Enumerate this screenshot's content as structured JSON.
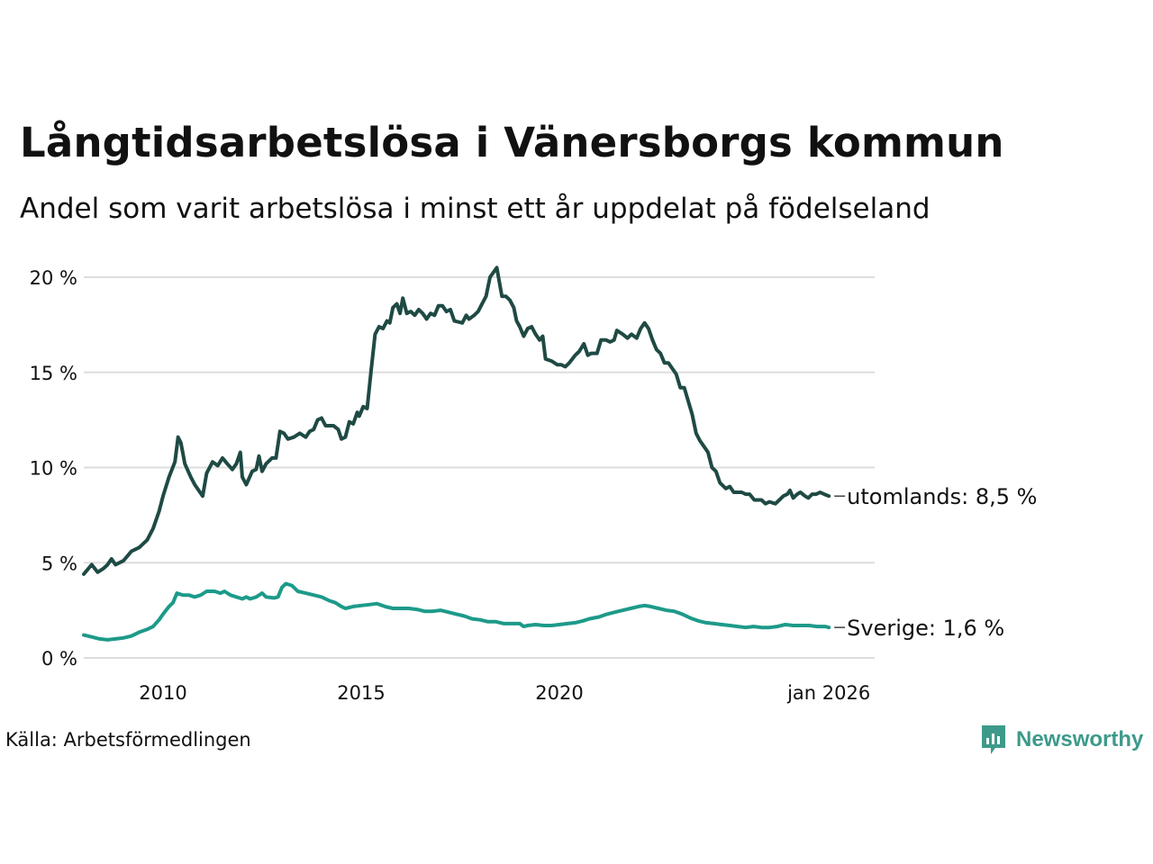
{
  "title": "Långtidsarbetslösa i Vänersborgs kommun",
  "subtitle": "Andel som varit arbetslösa i minst ett år uppdelat på födelseland",
  "source": "Källa: Arbetsförmedlingen",
  "logo_text": "Newsworthy",
  "colors": {
    "utomlands": "#1f4a44",
    "sverige": "#1d9a8a",
    "grid": "#dddddd",
    "logo": "#3d9a8a"
  },
  "chart_data": {
    "type": "line",
    "title": "Långtidsarbetslösa i Vänersborgs kommun",
    "subtitle": "Andel som varit arbetslösa i minst ett år uppdelat på födelseland",
    "xlabel": "",
    "ylabel": "",
    "xlim": [
      2008.0,
      2026.0
    ],
    "ylim": [
      0,
      20
    ],
    "y_ticks": [
      0,
      5,
      10,
      15,
      20
    ],
    "y_tick_labels": [
      "0 %",
      "5 %",
      "10 %",
      "15 %",
      "20 %"
    ],
    "x_ticks": [
      2010,
      2015,
      2020,
      2026
    ],
    "x_tick_labels": [
      "2010",
      "2015",
      "2020",
      "jan 2026"
    ],
    "grid": true,
    "series": [
      {
        "name": "utomlands",
        "end_label": "utomlands: 8,5 %",
        "points": [
          [
            2008.0,
            4.4
          ],
          [
            2008.2,
            4.9
          ],
          [
            2008.35,
            4.5
          ],
          [
            2008.5,
            4.7
          ],
          [
            2008.6,
            4.9
          ],
          [
            2008.7,
            5.2
          ],
          [
            2008.8,
            4.9
          ],
          [
            2009.0,
            5.1
          ],
          [
            2009.2,
            5.6
          ],
          [
            2009.4,
            5.8
          ],
          [
            2009.6,
            6.2
          ],
          [
            2009.75,
            6.8
          ],
          [
            2009.9,
            7.7
          ],
          [
            2010.0,
            8.5
          ],
          [
            2010.15,
            9.5
          ],
          [
            2010.3,
            10.3
          ],
          [
            2010.38,
            11.6
          ],
          [
            2010.45,
            11.3
          ],
          [
            2010.55,
            10.2
          ],
          [
            2010.7,
            9.5
          ],
          [
            2010.8,
            9.1
          ],
          [
            2010.9,
            8.8
          ],
          [
            2011.0,
            8.5
          ],
          [
            2011.1,
            9.7
          ],
          [
            2011.25,
            10.3
          ],
          [
            2011.38,
            10.1
          ],
          [
            2011.5,
            10.5
          ],
          [
            2011.62,
            10.2
          ],
          [
            2011.75,
            9.9
          ],
          [
            2011.85,
            10.2
          ],
          [
            2011.95,
            10.8
          ],
          [
            2012.0,
            9.5
          ],
          [
            2012.1,
            9.1
          ],
          [
            2012.25,
            9.8
          ],
          [
            2012.35,
            9.9
          ],
          [
            2012.42,
            10.6
          ],
          [
            2012.5,
            9.8
          ],
          [
            2012.6,
            10.2
          ],
          [
            2012.75,
            10.5
          ],
          [
            2012.85,
            10.5
          ],
          [
            2012.95,
            11.9
          ],
          [
            2013.05,
            11.8
          ],
          [
            2013.15,
            11.5
          ],
          [
            2013.3,
            11.6
          ],
          [
            2013.45,
            11.8
          ],
          [
            2013.6,
            11.6
          ],
          [
            2013.7,
            11.9
          ],
          [
            2013.8,
            12.0
          ],
          [
            2013.9,
            12.5
          ],
          [
            2014.0,
            12.6
          ],
          [
            2014.1,
            12.2
          ],
          [
            2014.3,
            12.2
          ],
          [
            2014.42,
            12.0
          ],
          [
            2014.5,
            11.5
          ],
          [
            2014.6,
            11.6
          ],
          [
            2014.7,
            12.4
          ],
          [
            2014.8,
            12.3
          ],
          [
            2014.9,
            12.9
          ],
          [
            2014.95,
            12.7
          ],
          [
            2015.05,
            13.2
          ],
          [
            2015.15,
            13.1
          ],
          [
            2015.25,
            15.1
          ],
          [
            2015.35,
            17.0
          ],
          [
            2015.45,
            17.4
          ],
          [
            2015.55,
            17.3
          ],
          [
            2015.65,
            17.7
          ],
          [
            2015.72,
            17.6
          ],
          [
            2015.8,
            18.4
          ],
          [
            2015.9,
            18.6
          ],
          [
            2015.98,
            18.1
          ],
          [
            2016.05,
            18.9
          ],
          [
            2016.15,
            18.1
          ],
          [
            2016.25,
            18.2
          ],
          [
            2016.35,
            18.0
          ],
          [
            2016.45,
            18.3
          ],
          [
            2016.55,
            18.1
          ],
          [
            2016.65,
            17.8
          ],
          [
            2016.75,
            18.1
          ],
          [
            2016.85,
            18.0
          ],
          [
            2016.95,
            18.5
          ],
          [
            2017.05,
            18.5
          ],
          [
            2017.15,
            18.2
          ],
          [
            2017.25,
            18.3
          ],
          [
            2017.35,
            17.7
          ],
          [
            2017.55,
            17.6
          ],
          [
            2017.65,
            18.0
          ],
          [
            2017.72,
            17.8
          ],
          [
            2017.85,
            18.0
          ],
          [
            2017.95,
            18.2
          ],
          [
            2018.05,
            18.6
          ],
          [
            2018.15,
            19.0
          ],
          [
            2018.25,
            20.0
          ],
          [
            2018.42,
            20.5
          ],
          [
            2018.55,
            19.0
          ],
          [
            2018.65,
            19.0
          ],
          [
            2018.75,
            18.8
          ],
          [
            2018.85,
            18.4
          ],
          [
            2018.92,
            17.7
          ],
          [
            2019.0,
            17.4
          ],
          [
            2019.1,
            16.9
          ],
          [
            2019.2,
            17.3
          ],
          [
            2019.3,
            17.4
          ],
          [
            2019.4,
            17.0
          ],
          [
            2019.5,
            16.7
          ],
          [
            2019.58,
            16.9
          ],
          [
            2019.65,
            15.7
          ],
          [
            2019.8,
            15.6
          ],
          [
            2019.95,
            15.4
          ],
          [
            2020.05,
            15.4
          ],
          [
            2020.15,
            15.3
          ],
          [
            2020.25,
            15.5
          ],
          [
            2020.4,
            15.9
          ],
          [
            2020.5,
            16.1
          ],
          [
            2020.62,
            16.5
          ],
          [
            2020.72,
            15.9
          ],
          [
            2020.8,
            16.0
          ],
          [
            2020.95,
            16.0
          ],
          [
            2021.05,
            16.7
          ],
          [
            2021.18,
            16.7
          ],
          [
            2021.28,
            16.6
          ],
          [
            2021.38,
            16.7
          ],
          [
            2021.45,
            17.2
          ],
          [
            2021.6,
            17.0
          ],
          [
            2021.72,
            16.8
          ],
          [
            2021.82,
            17.0
          ],
          [
            2021.95,
            16.8
          ],
          [
            2022.05,
            17.3
          ],
          [
            2022.15,
            17.6
          ],
          [
            2022.25,
            17.3
          ],
          [
            2022.35,
            16.7
          ],
          [
            2022.45,
            16.2
          ],
          [
            2022.55,
            16.0
          ],
          [
            2022.65,
            15.5
          ],
          [
            2022.75,
            15.5
          ],
          [
            2022.85,
            15.2
          ],
          [
            2022.95,
            14.9
          ],
          [
            2023.05,
            14.2
          ],
          [
            2023.15,
            14.2
          ],
          [
            2023.25,
            13.5
          ],
          [
            2023.35,
            12.8
          ],
          [
            2023.45,
            11.8
          ],
          [
            2023.55,
            11.4
          ],
          [
            2023.65,
            11.1
          ],
          [
            2023.75,
            10.8
          ],
          [
            2023.85,
            10.0
          ],
          [
            2023.95,
            9.8
          ],
          [
            2024.05,
            9.2
          ],
          [
            2024.2,
            8.9
          ],
          [
            2024.3,
            9.0
          ],
          [
            2024.4,
            8.7
          ],
          [
            2024.6,
            8.7
          ],
          [
            2024.7,
            8.6
          ],
          [
            2024.8,
            8.6
          ],
          [
            2024.92,
            8.3
          ],
          [
            2025.0,
            8.3
          ],
          [
            2025.1,
            8.3
          ],
          [
            2025.2,
            8.1
          ],
          [
            2025.3,
            8.2
          ],
          [
            2025.45,
            8.1
          ],
          [
            2025.55,
            8.3
          ],
          [
            2025.65,
            8.5
          ],
          [
            2025.75,
            8.6
          ],
          [
            2025.82,
            8.8
          ],
          [
            2025.9,
            8.4
          ],
          [
            2026.0,
            8.6
          ],
          [
            2026.08,
            8.7
          ],
          [
            2026.2,
            8.5
          ],
          [
            2026.28,
            8.4
          ],
          [
            2026.38,
            8.6
          ],
          [
            2026.48,
            8.6
          ],
          [
            2026.58,
            8.7
          ],
          [
            2026.68,
            8.6
          ],
          [
            2026.8,
            8.5
          ]
        ]
      },
      {
        "name": "Sverige",
        "end_label": "Sverige: 1,6 %",
        "points": [
          [
            2008.0,
            1.2
          ],
          [
            2008.2,
            1.1
          ],
          [
            2008.4,
            1.0
          ],
          [
            2008.6,
            0.95
          ],
          [
            2008.8,
            1.0
          ],
          [
            2009.0,
            1.05
          ],
          [
            2009.2,
            1.15
          ],
          [
            2009.4,
            1.35
          ],
          [
            2009.6,
            1.5
          ],
          [
            2009.75,
            1.65
          ],
          [
            2009.9,
            2.0
          ],
          [
            2010.0,
            2.3
          ],
          [
            2010.15,
            2.7
          ],
          [
            2010.25,
            2.9
          ],
          [
            2010.35,
            3.4
          ],
          [
            2010.5,
            3.3
          ],
          [
            2010.65,
            3.3
          ],
          [
            2010.8,
            3.2
          ],
          [
            2010.95,
            3.3
          ],
          [
            2011.1,
            3.5
          ],
          [
            2011.3,
            3.5
          ],
          [
            2011.45,
            3.4
          ],
          [
            2011.55,
            3.5
          ],
          [
            2011.7,
            3.3
          ],
          [
            2011.85,
            3.2
          ],
          [
            2012.0,
            3.1
          ],
          [
            2012.1,
            3.2
          ],
          [
            2012.2,
            3.1
          ],
          [
            2012.35,
            3.2
          ],
          [
            2012.5,
            3.4
          ],
          [
            2012.6,
            3.2
          ],
          [
            2012.8,
            3.15
          ],
          [
            2012.9,
            3.2
          ],
          [
            2013.0,
            3.7
          ],
          [
            2013.1,
            3.9
          ],
          [
            2013.25,
            3.8
          ],
          [
            2013.4,
            3.5
          ],
          [
            2013.6,
            3.4
          ],
          [
            2013.8,
            3.3
          ],
          [
            2014.0,
            3.2
          ],
          [
            2014.2,
            3.0
          ],
          [
            2014.35,
            2.9
          ],
          [
            2014.5,
            2.7
          ],
          [
            2014.6,
            2.6
          ],
          [
            2014.8,
            2.7
          ],
          [
            2015.0,
            2.75
          ],
          [
            2015.2,
            2.8
          ],
          [
            2015.4,
            2.85
          ],
          [
            2015.6,
            2.7
          ],
          [
            2015.8,
            2.6
          ],
          [
            2016.0,
            2.6
          ],
          [
            2016.2,
            2.6
          ],
          [
            2016.4,
            2.55
          ],
          [
            2016.6,
            2.45
          ],
          [
            2016.8,
            2.45
          ],
          [
            2017.0,
            2.5
          ],
          [
            2017.2,
            2.4
          ],
          [
            2017.4,
            2.3
          ],
          [
            2017.6,
            2.2
          ],
          [
            2017.8,
            2.05
          ],
          [
            2018.0,
            2.0
          ],
          [
            2018.2,
            1.9
          ],
          [
            2018.4,
            1.9
          ],
          [
            2018.6,
            1.8
          ],
          [
            2018.8,
            1.8
          ],
          [
            2019.0,
            1.8
          ],
          [
            2019.1,
            1.65
          ],
          [
            2019.2,
            1.7
          ],
          [
            2019.4,
            1.75
          ],
          [
            2019.6,
            1.7
          ],
          [
            2019.8,
            1.7
          ],
          [
            2020.0,
            1.75
          ],
          [
            2020.2,
            1.8
          ],
          [
            2020.4,
            1.85
          ],
          [
            2020.6,
            1.95
          ],
          [
            2020.75,
            2.05
          ],
          [
            2021.0,
            2.15
          ],
          [
            2021.2,
            2.3
          ],
          [
            2021.4,
            2.4
          ],
          [
            2021.6,
            2.5
          ],
          [
            2021.8,
            2.6
          ],
          [
            2022.0,
            2.7
          ],
          [
            2022.15,
            2.75
          ],
          [
            2022.3,
            2.7
          ],
          [
            2022.5,
            2.6
          ],
          [
            2022.7,
            2.5
          ],
          [
            2022.9,
            2.45
          ],
          [
            2023.1,
            2.3
          ],
          [
            2023.3,
            2.1
          ],
          [
            2023.5,
            1.95
          ],
          [
            2023.7,
            1.85
          ],
          [
            2023.9,
            1.8
          ],
          [
            2024.1,
            1.75
          ],
          [
            2024.3,
            1.7
          ],
          [
            2024.5,
            1.65
          ],
          [
            2024.7,
            1.6
          ],
          [
            2024.9,
            1.65
          ],
          [
            2025.1,
            1.6
          ],
          [
            2025.3,
            1.6
          ],
          [
            2025.5,
            1.65
          ],
          [
            2025.7,
            1.75
          ],
          [
            2025.9,
            1.7
          ],
          [
            2026.1,
            1.7
          ],
          [
            2026.3,
            1.7
          ],
          [
            2026.5,
            1.65
          ],
          [
            2026.7,
            1.65
          ],
          [
            2026.8,
            1.6
          ]
        ]
      }
    ]
  }
}
